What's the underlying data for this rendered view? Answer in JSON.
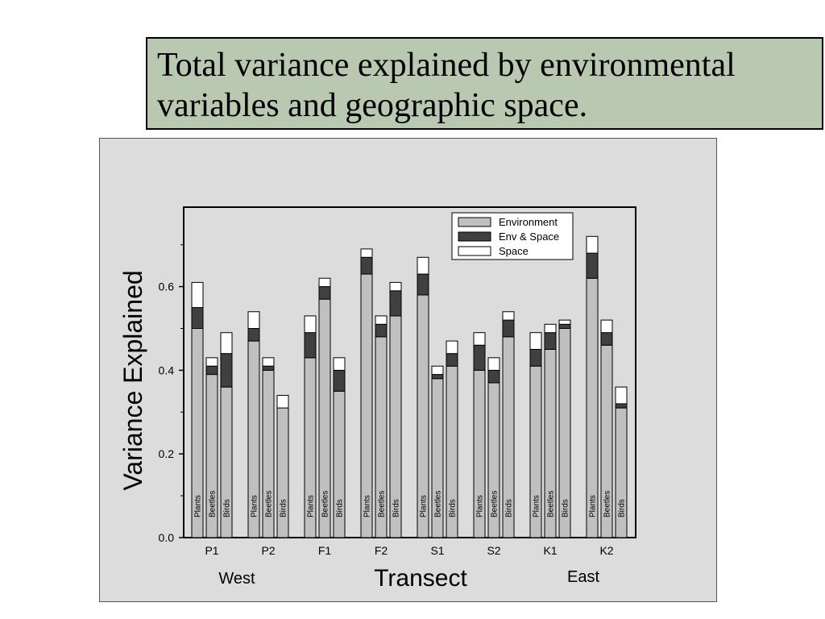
{
  "title": {
    "line1": "Total variance explained by environmental",
    "line2": "variables and geographic space."
  },
  "chart_data": {
    "type": "bar",
    "stacked": true,
    "grouped": true,
    "ylabel": "Variance Explained",
    "xlabel": "Transect",
    "ylim": [
      0,
      0.7
    ],
    "yticks": [
      "0.0",
      "0.2",
      "0.4",
      "0.6"
    ],
    "region_labels": {
      "left": "West",
      "right": "East"
    },
    "groups": [
      "P1",
      "P2",
      "F1",
      "F2",
      "S1",
      "S2",
      "K1",
      "K2"
    ],
    "taxa": [
      "Plants",
      "Beetles",
      "Birds"
    ],
    "legend": [
      "Environment",
      "Env & Space",
      "Space"
    ],
    "colors": {
      "environment": "#c0c0c0",
      "env_space": "#404040",
      "space": "#ffffff"
    },
    "series": [
      {
        "name": "Environment",
        "values": [
          [
            0.5,
            0.39,
            0.36
          ],
          [
            0.47,
            0.4,
            0.31
          ],
          [
            0.43,
            0.57,
            0.35
          ],
          [
            0.63,
            0.48,
            0.53
          ],
          [
            0.58,
            0.38,
            0.41
          ],
          [
            0.4,
            0.37,
            0.48
          ],
          [
            0.41,
            0.45,
            0.5
          ],
          [
            0.62,
            0.46,
            0.31
          ]
        ]
      },
      {
        "name": "Env & Space",
        "values": [
          [
            0.05,
            0.02,
            0.08
          ],
          [
            0.03,
            0.01,
            0.0
          ],
          [
            0.06,
            0.03,
            0.05
          ],
          [
            0.04,
            0.03,
            0.06
          ],
          [
            0.05,
            0.01,
            0.03
          ],
          [
            0.06,
            0.03,
            0.04
          ],
          [
            0.04,
            0.04,
            0.01
          ],
          [
            0.06,
            0.03,
            0.01
          ]
        ]
      },
      {
        "name": "Space",
        "values": [
          [
            0.06,
            0.02,
            0.05
          ],
          [
            0.04,
            0.02,
            0.03
          ],
          [
            0.04,
            0.02,
            0.03
          ],
          [
            0.02,
            0.02,
            0.02
          ],
          [
            0.04,
            0.02,
            0.03
          ],
          [
            0.03,
            0.03,
            0.02
          ],
          [
            0.04,
            0.02,
            0.01
          ],
          [
            0.04,
            0.03,
            0.04
          ]
        ]
      }
    ]
  }
}
